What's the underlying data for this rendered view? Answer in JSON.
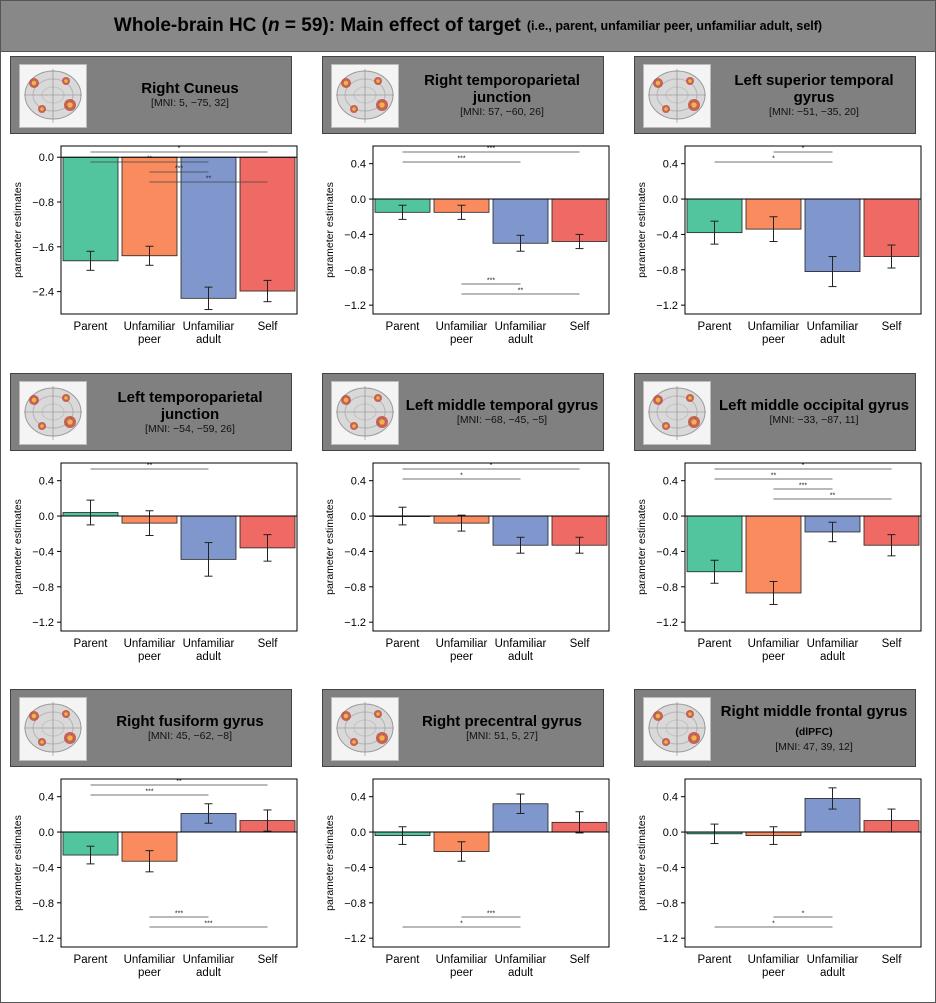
{
  "header": {
    "title_pre": "Whole-brain HC (",
    "title_n": "n",
    "title_post": " = 59): Main effect of target",
    "subtitle": "(i.e., parent, unfamiliar peer, unfamiliar adult, self)"
  },
  "colors": {
    "Parent": "#52c59f",
    "Unfamiliar peer": "#f98b5e",
    "Unfamiliar adult": "#7f97cc",
    "Self": "#ef6a64",
    "caption_background": "#808080",
    "header_background": "#888888"
  },
  "chart_data": [
    {
      "type": "bar",
      "title": "Right Cuneus",
      "mni": "[MNI: 5, −75, 32]",
      "ylabel": "parameter estimates",
      "categories": [
        "Parent",
        "Unfamiliar peer",
        "Unfamiliar adult",
        "Self"
      ],
      "values": [
        -1.85,
        -1.76,
        -2.52,
        -2.39
      ],
      "errors": [
        0.17,
        0.17,
        0.2,
        0.19
      ],
      "ylim": [
        -2.8,
        0.2
      ],
      "yticks": [
        0.0,
        -0.8,
        -1.6,
        -2.4
      ],
      "significance": [
        {
          "from": 0,
          "to": 3,
          "stars": "*"
        },
        {
          "from": 0,
          "to": 2,
          "stars": "**"
        },
        {
          "from": 1,
          "to": 2,
          "stars": "***"
        },
        {
          "from": 1,
          "to": 3,
          "stars": "**"
        }
      ]
    },
    {
      "type": "bar",
      "title": "Right temporoparietal junction",
      "mni": "[MNI: 57, −60, 26]",
      "ylabel": "parameter estimates",
      "categories": [
        "Parent",
        "Unfamiliar peer",
        "Unfamiliar adult",
        "Self"
      ],
      "values": [
        -0.15,
        -0.15,
        -0.5,
        -0.48
      ],
      "errors": [
        0.08,
        0.08,
        0.09,
        0.08
      ],
      "ylim": [
        -1.3,
        0.6
      ],
      "yticks": [
        0.4,
        0.0,
        -0.4,
        -0.8,
        -1.2
      ],
      "significance": [
        {
          "from": 0,
          "to": 3,
          "stars": "***"
        },
        {
          "from": 0,
          "to": 2,
          "stars": "***"
        },
        {
          "from": 1,
          "to": 2,
          "stars": "***"
        },
        {
          "from": 1,
          "to": 3,
          "stars": "**"
        }
      ]
    },
    {
      "type": "bar",
      "title": "Left superior temporal gyrus",
      "mni": "[MNI: −51, −35, 20]",
      "ylabel": "parameter estimates",
      "categories": [
        "Parent",
        "Unfamiliar peer",
        "Unfamiliar adult",
        "Self"
      ],
      "values": [
        -0.38,
        -0.34,
        -0.82,
        -0.65
      ],
      "errors": [
        0.13,
        0.14,
        0.17,
        0.13
      ],
      "ylim": [
        -1.3,
        0.6
      ],
      "yticks": [
        0.4,
        0.0,
        -0.4,
        -0.8,
        -1.2
      ],
      "significance": [
        {
          "from": 1,
          "to": 2,
          "stars": "*"
        },
        {
          "from": 0,
          "to": 2,
          "stars": "*"
        }
      ]
    },
    {
      "type": "bar",
      "title": "Left temporoparietal junction",
      "mni": "[MNI: −54, −59, 26]",
      "ylabel": "parameter estimates",
      "categories": [
        "Parent",
        "Unfamiliar peer",
        "Unfamiliar adult",
        "Self"
      ],
      "values": [
        0.04,
        -0.08,
        -0.49,
        -0.36
      ],
      "errors": [
        0.14,
        0.14,
        0.19,
        0.15
      ],
      "ylim": [
        -1.3,
        0.6
      ],
      "yticks": [
        0.4,
        0.0,
        -0.4,
        -0.8,
        -1.2
      ],
      "significance": [
        {
          "from": 0,
          "to": 2,
          "stars": "**"
        }
      ]
    },
    {
      "type": "bar",
      "title": "Left middle temporal gyrus",
      "mni": "[MNI: −68, −45, −5]",
      "ylabel": "parameter estimates",
      "categories": [
        "Parent",
        "Unfamiliar peer",
        "Unfamiliar adult",
        "Self"
      ],
      "values": [
        0.0,
        -0.08,
        -0.33,
        -0.33
      ],
      "errors": [
        0.1,
        0.09,
        0.09,
        0.09
      ],
      "ylim": [
        -1.3,
        0.6
      ],
      "yticks": [
        0.4,
        0.0,
        -0.4,
        -0.8,
        -1.2
      ],
      "significance": [
        {
          "from": 0,
          "to": 3,
          "stars": "*"
        },
        {
          "from": 0,
          "to": 2,
          "stars": "*"
        }
      ]
    },
    {
      "type": "bar",
      "title": "Left middle occipital gyrus",
      "mni": "[MNI: −33, −87, 11]",
      "ylabel": "parameter estimates",
      "categories": [
        "Parent",
        "Unfamiliar peer",
        "Unfamiliar adult",
        "Self"
      ],
      "values": [
        -0.63,
        -0.87,
        -0.18,
        -0.33
      ],
      "errors": [
        0.13,
        0.13,
        0.11,
        0.12
      ],
      "ylim": [
        -1.3,
        0.6
      ],
      "yticks": [
        0.4,
        0.0,
        -0.4,
        -0.8,
        -1.2
      ],
      "significance": [
        {
          "from": 0,
          "to": 3,
          "stars": "*"
        },
        {
          "from": 0,
          "to": 2,
          "stars": "**"
        },
        {
          "from": 1,
          "to": 2,
          "stars": "***"
        },
        {
          "from": 1,
          "to": 3,
          "stars": "**"
        }
      ]
    },
    {
      "type": "bar",
      "title": "Right fusiform gyrus",
      "mni": "[MNI: 45, −62, −8]",
      "ylabel": "parameter estimates",
      "categories": [
        "Parent",
        "Unfamiliar peer",
        "Unfamiliar adult",
        "Self"
      ],
      "values": [
        -0.26,
        -0.33,
        0.21,
        0.13
      ],
      "errors": [
        0.1,
        0.12,
        0.11,
        0.12
      ],
      "ylim": [
        -1.3,
        0.6
      ],
      "yticks": [
        0.4,
        0.0,
        -0.4,
        -0.8,
        -1.2
      ],
      "significance": [
        {
          "from": 0,
          "to": 3,
          "stars": "**"
        },
        {
          "from": 0,
          "to": 2,
          "stars": "***"
        },
        {
          "from": 1,
          "to": 2,
          "stars": "***"
        },
        {
          "from": 1,
          "to": 3,
          "stars": "***"
        }
      ]
    },
    {
      "type": "bar",
      "title": "Right precentral gyrus",
      "mni": "[MNI: 51, 5, 27]",
      "ylabel": "parameter estimates",
      "categories": [
        "Parent",
        "Unfamiliar peer",
        "Unfamiliar adult",
        "Self"
      ],
      "values": [
        -0.04,
        -0.22,
        0.32,
        0.11
      ],
      "errors": [
        0.1,
        0.11,
        0.11,
        0.12
      ],
      "ylim": [
        -1.3,
        0.6
      ],
      "yticks": [
        0.4,
        0.0,
        -0.4,
        -0.8,
        -1.2
      ],
      "significance": [
        {
          "from": 1,
          "to": 2,
          "stars": "***"
        },
        {
          "from": 0,
          "to": 2,
          "stars": "*"
        }
      ]
    },
    {
      "type": "bar",
      "title": "Right middle frontal gyrus",
      "title_tag": "(dlPFC)",
      "mni": "[MNI: 47, 39, 12]",
      "ylabel": "parameter estimates",
      "categories": [
        "Parent",
        "Unfamiliar peer",
        "Unfamiliar adult",
        "Self"
      ],
      "values": [
        -0.02,
        -0.04,
        0.38,
        0.13
      ],
      "errors": [
        0.11,
        0.1,
        0.12,
        0.13
      ],
      "ylim": [
        -1.3,
        0.6
      ],
      "yticks": [
        0.4,
        0.0,
        -0.4,
        -0.8,
        -1.2
      ],
      "significance": [
        {
          "from": 1,
          "to": 2,
          "stars": "*"
        },
        {
          "from": 0,
          "to": 2,
          "stars": "*"
        }
      ]
    }
  ]
}
